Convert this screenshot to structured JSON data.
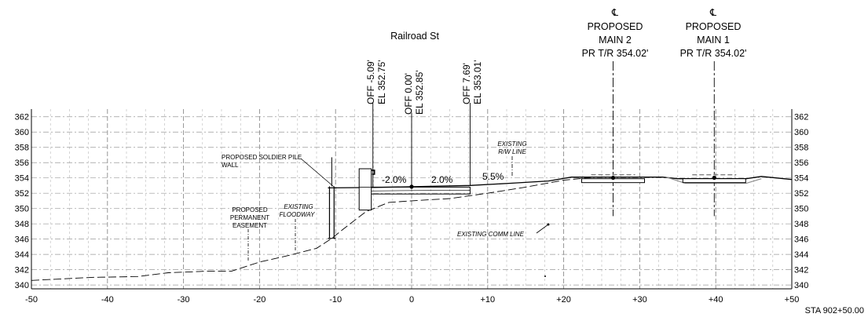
{
  "section": {
    "street_name": "Railroad St",
    "station_label": "STA 902+50.00",
    "x_axis": {
      "min": -50,
      "max": 50,
      "step": 10,
      "minor_step": 2.5,
      "tick_labels": [
        "-50",
        "-40",
        "-30",
        "-20",
        "-10",
        "0",
        "+10",
        "+20",
        "+30",
        "+40",
        "+50"
      ]
    },
    "y_axis": {
      "min": 339.5,
      "max": 363,
      "ticks": [
        340,
        342,
        344,
        346,
        348,
        350,
        352,
        354,
        356,
        358,
        360,
        362
      ],
      "tick_labels": [
        "340",
        "342",
        "344",
        "346",
        "348",
        "350",
        "352",
        "354",
        "356",
        "358",
        "360",
        "362"
      ]
    },
    "offset_callouts": [
      {
        "offset": -5.09,
        "line1": "OFF -5.09'",
        "line2": "EL 352.75'",
        "elevation": 352.75
      },
      {
        "offset": 0.0,
        "line1": "OFF 0.00'",
        "line2": "EL 352.85'",
        "elevation": 352.85
      },
      {
        "offset": 7.69,
        "line1": "OFF 7.69'",
        "line2": "EL 353.01'",
        "elevation": 353.01
      }
    ],
    "track_centerlines": [
      {
        "offset": 26.5,
        "symbol": "℄",
        "line1": "PROPOSED",
        "line2": "MAIN 2",
        "line3": "PR T/R 354.02'",
        "elevation": 354.02
      },
      {
        "offset": 39.8,
        "symbol": "℄",
        "line1": "PROPOSED",
        "line2": "MAIN 1",
        "line3": "PR T/R 354.02'",
        "elevation": 354.02
      }
    ],
    "slopes": [
      {
        "text": "-2.0%",
        "offset": -2.5,
        "elevation": 353.5
      },
      {
        "text": "2.0%",
        "offset": 4.1,
        "elevation": 353.5
      },
      {
        "text": "5.5%",
        "offset": 10.9,
        "elevation": 354.35
      }
    ],
    "notes": {
      "soldier_pile_line1": "PROPOSED SOLDIER PILE",
      "soldier_pile_line2": "WALL",
      "easement_line1": "PROPOSED",
      "easement_line2": "PERMANENT",
      "easement_line3": "EASEMENT",
      "floodway_line1": "EXISTING",
      "floodway_line2": "FLOODWAY",
      "rw_line1": "EXISTING",
      "rw_line2": "R/W LINE",
      "comm_line": "EXISTING COMM LINE"
    },
    "existing_ground": [
      [
        -50,
        340.6
      ],
      [
        -42,
        341.0
      ],
      [
        -36,
        341.1
      ],
      [
        -32,
        341.6
      ],
      [
        -27,
        341.8
      ],
      [
        -23.7,
        341.8
      ],
      [
        -20,
        343.0
      ],
      [
        -16,
        343.9
      ],
      [
        -12.5,
        344.8
      ],
      [
        -10.5,
        346.1
      ],
      [
        -9,
        347.3
      ],
      [
        -6,
        349.6
      ],
      [
        -3,
        350.8
      ],
      [
        0,
        351.0
      ],
      [
        5,
        351.3
      ],
      [
        10,
        352.0
      ],
      [
        15,
        352.8
      ],
      [
        20,
        353.7
      ],
      [
        24,
        354.1
      ]
    ],
    "proposed_surface": [
      [
        -11,
        352.7
      ],
      [
        -5.09,
        352.75
      ],
      [
        0,
        352.85
      ],
      [
        7.69,
        353.01
      ],
      [
        13,
        353.3
      ],
      [
        18,
        353.6
      ],
      [
        21,
        354.1
      ],
      [
        33,
        354.1
      ],
      [
        35,
        353.9
      ],
      [
        44,
        353.9
      ],
      [
        46,
        354.2
      ],
      [
        50,
        353.8
      ]
    ]
  }
}
